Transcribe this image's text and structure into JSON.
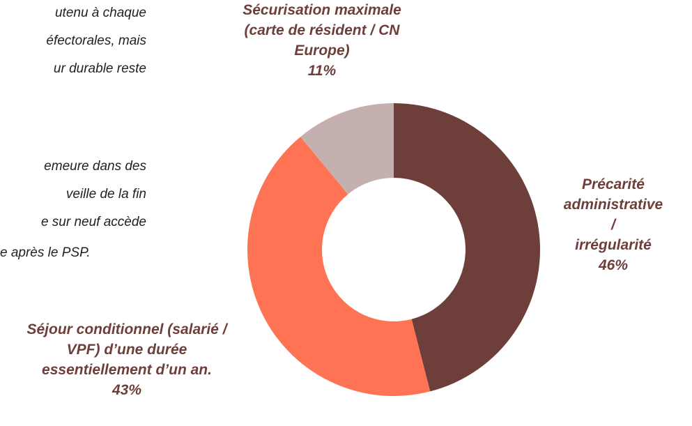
{
  "side_text": [
    "utenu à chaque",
    "éfectorales, mais",
    "ur durable reste",
    "emeure dans des",
    "veille de la fin",
    "e sur neuf accède",
    "e après le PSP."
  ],
  "chart_data": {
    "type": "donut",
    "categories": [
      "Précarité\nadministrative /\nirrégularité",
      "Séjour conditionnel (salarié /\nVPF) d’une durée\nessentiellement d’un an.",
      "Sécurisation maximale\n(carte de résident / CN\nEurope)"
    ],
    "values": [
      46,
      43,
      11
    ],
    "value_labels": [
      "46%",
      "43%",
      "11%"
    ],
    "colors": [
      "#6e3f3a",
      "#ff7355",
      "#c4b0ae"
    ]
  }
}
